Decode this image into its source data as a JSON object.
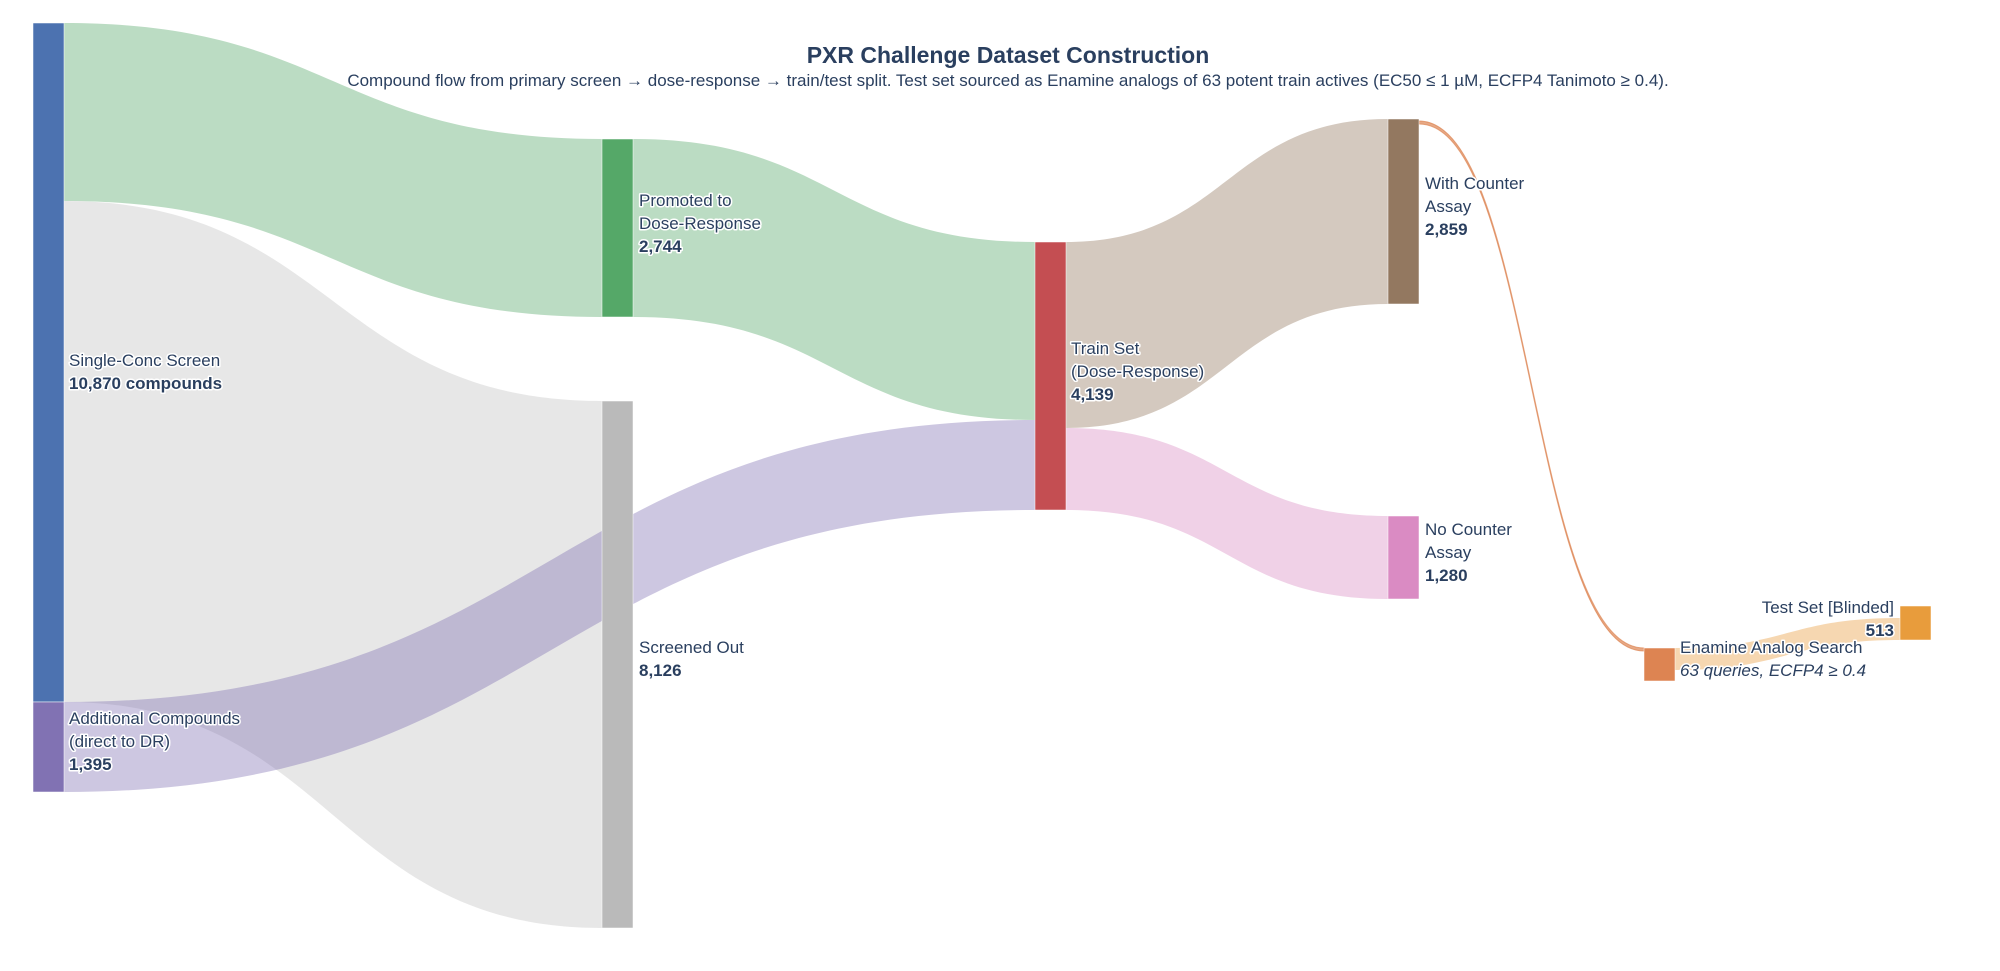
{
  "title": "PXR Challenge Dataset Construction",
  "subtitle": "Compound flow from primary screen → dose-response → train/test split. Test set sourced as Enamine analogs of 63 potent train actives (EC50 ≤ 1 µM, ECFP4 Tanimoto ≥ 0.4).",
  "nodes": [
    {
      "id": "single",
      "label_lines": [
        "Single-Conc Screen"
      ],
      "value_text": "10,870 compounds",
      "color": "#4c72b0"
    },
    {
      "id": "additional",
      "label_lines": [
        "Additional Compounds",
        "(direct to DR)"
      ],
      "value_text": "1,395",
      "color": "#8172b3"
    },
    {
      "id": "promoted",
      "label_lines": [
        "Promoted to",
        "Dose-Response"
      ],
      "value_text": "2,744",
      "color": "#55a868"
    },
    {
      "id": "screened_out",
      "label_lines": [
        "Screened Out"
      ],
      "value_text": "8,126",
      "color": "#bababa"
    },
    {
      "id": "train",
      "label_lines": [
        "Train Set",
        "(Dose-Response)"
      ],
      "value_text": "4,139",
      "color": "#c44e52"
    },
    {
      "id": "with_counter",
      "label_lines": [
        "With Counter",
        "Assay"
      ],
      "value_text": "2,859",
      "color": "#937860"
    },
    {
      "id": "no_counter",
      "label_lines": [
        "No Counter",
        "Assay"
      ],
      "value_text": "1,280",
      "color": "#da8bc3"
    },
    {
      "id": "enamine",
      "label_lines": [
        "Enamine Analog Search"
      ],
      "value_text": "63 queries, ECFP4 ≥ 0.4",
      "color": "#dd8452"
    },
    {
      "id": "test",
      "label_lines": [
        "Test Set [Blinded]"
      ],
      "value_text": "513",
      "color": "#e89c3c"
    }
  ],
  "links": [
    {
      "source": "single",
      "target": "promoted",
      "value": 2744,
      "color": "#55a868"
    },
    {
      "source": "single",
      "target": "screened_out",
      "value": 8126,
      "color": "#bababa"
    },
    {
      "source": "additional",
      "target": "train",
      "value": 1395,
      "color": "#8172b3"
    },
    {
      "source": "promoted",
      "target": "train",
      "value": 2744,
      "color": "#55a868"
    },
    {
      "source": "train",
      "target": "with_counter",
      "value": 2859,
      "color": "#937860"
    },
    {
      "source": "train",
      "target": "no_counter",
      "value": 1280,
      "color": "#da8bc3"
    },
    {
      "source": "with_counter",
      "target": "enamine",
      "value": 63,
      "color": "#dd8452"
    },
    {
      "source": "enamine",
      "target": "test",
      "value": 513,
      "color": "#e89c3c"
    }
  ]
}
